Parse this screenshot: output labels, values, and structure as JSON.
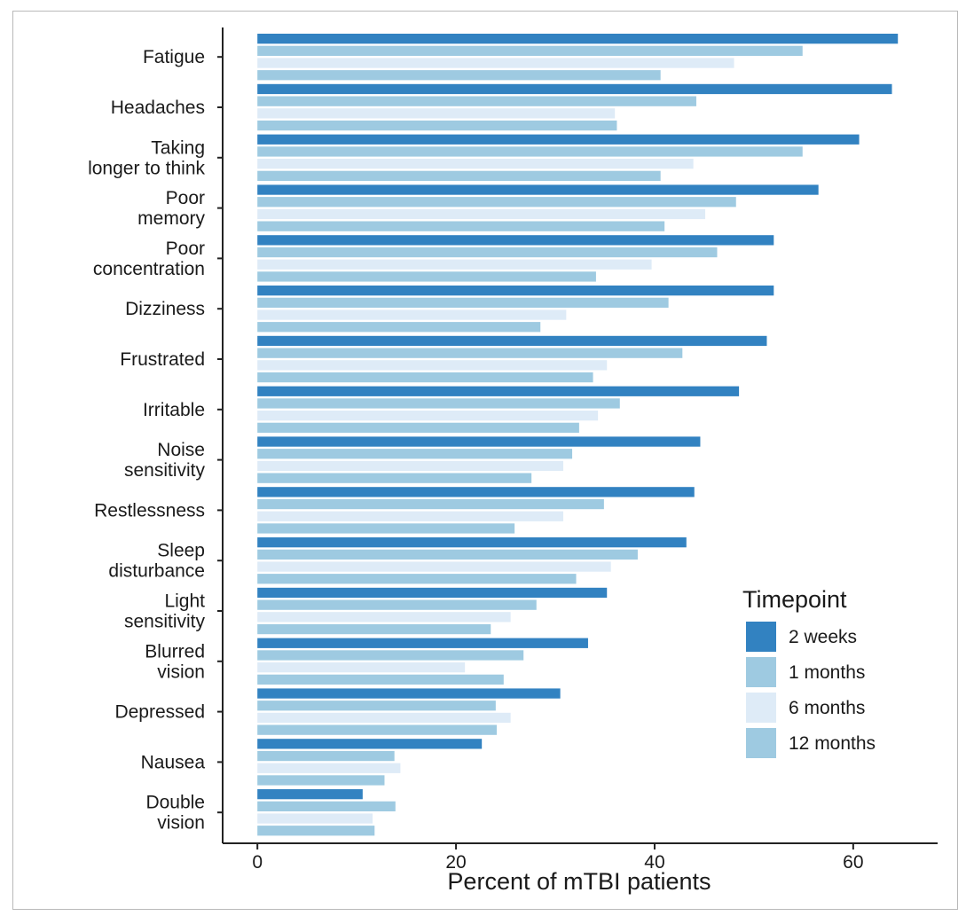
{
  "chart_data": {
    "type": "bar",
    "orientation": "horizontal",
    "title": "",
    "xlabel": "Percent of mTBI patients",
    "ylabel": "",
    "xlim": [
      -3.5,
      68.5
    ],
    "xticks": [
      0,
      20,
      40,
      60
    ],
    "grid": false,
    "legend": {
      "title": "Timepoint",
      "position": "right"
    },
    "categories": [
      "Fatigue",
      "Headaches",
      "Taking longer to think",
      "Poor memory",
      "Poor concentration",
      "Dizziness",
      "Frustrated",
      "Irritable",
      "Noise sensitivity",
      "Restlessness",
      "Sleep disturbance",
      "Light sensitivity",
      "Blurred vision",
      "Depressed",
      "Nausea",
      "Double vision"
    ],
    "category_lines": [
      [
        "Fatigue"
      ],
      [
        "Headaches"
      ],
      [
        "Taking",
        "longer to think"
      ],
      [
        "Poor",
        "memory"
      ],
      [
        "Poor",
        "concentration"
      ],
      [
        "Dizziness"
      ],
      [
        "Frustrated"
      ],
      [
        "Irritable"
      ],
      [
        "Noise",
        "sensitivity"
      ],
      [
        "Restlessness"
      ],
      [
        "Sleep",
        "disturbance"
      ],
      [
        "Light",
        "sensitivity"
      ],
      [
        "Blurred",
        "vision"
      ],
      [
        "Depressed"
      ],
      [
        "Nausea"
      ],
      [
        "Double",
        "vision"
      ]
    ],
    "series": [
      {
        "name": "2 weeks",
        "color": "#3282c1",
        "values": [
          64.5,
          63.9,
          60.6,
          56.5,
          52.0,
          52.0,
          51.3,
          48.5,
          44.6,
          44.0,
          43.2,
          35.2,
          33.3,
          30.5,
          22.6,
          10.6
        ]
      },
      {
        "name": "1 months",
        "color": "#9ecae1",
        "values": [
          54.9,
          44.2,
          54.9,
          48.2,
          46.3,
          41.4,
          42.8,
          36.5,
          31.7,
          34.9,
          38.3,
          28.1,
          26.8,
          24.0,
          13.8,
          13.9
        ]
      },
      {
        "name": "6 months",
        "color": "#deebf7",
        "values": [
          48.0,
          36.0,
          43.9,
          45.1,
          39.7,
          31.1,
          35.2,
          34.3,
          30.8,
          30.8,
          35.6,
          25.5,
          20.9,
          25.5,
          14.4,
          11.6
        ]
      },
      {
        "name": "12 months",
        "color": "#9ecae1",
        "values": [
          40.6,
          36.2,
          40.6,
          41.0,
          34.1,
          28.5,
          33.8,
          32.4,
          27.6,
          25.9,
          32.1,
          23.5,
          24.8,
          24.1,
          12.8,
          11.8
        ]
      }
    ]
  }
}
